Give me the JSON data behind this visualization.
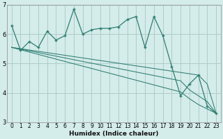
{
  "xlabel": "Humidex (Indice chaleur)",
  "ylabel": "",
  "xlim": [
    -0.5,
    23.5
  ],
  "ylim": [
    3,
    7
  ],
  "bg_color": "#d4ecea",
  "plot_bg_color": "#d4ecea",
  "grid_color": "#a8c8c4",
  "line_color": "#2e7d72",
  "main_line": [
    6.3,
    5.45,
    5.75,
    5.55,
    6.1,
    5.8,
    5.95,
    6.85,
    6.0,
    6.15,
    6.2,
    6.2,
    6.25,
    6.5,
    6.6,
    5.55,
    6.6,
    5.95,
    4.9,
    3.9,
    4.3,
    4.6,
    3.55,
    3.3
  ],
  "diag_line1": [
    5.55,
    5.505,
    5.46,
    5.415,
    5.37,
    5.325,
    5.28,
    5.235,
    5.19,
    5.145,
    5.1,
    5.055,
    5.01,
    4.965,
    4.92,
    4.875,
    4.83,
    4.785,
    4.74,
    4.695,
    4.65,
    4.605,
    4.3,
    3.3
  ],
  "diag_line2": [
    5.55,
    5.49,
    5.43,
    5.37,
    5.31,
    5.25,
    5.19,
    5.13,
    5.07,
    5.01,
    4.95,
    4.89,
    4.83,
    4.77,
    4.71,
    4.65,
    4.59,
    4.53,
    4.47,
    4.41,
    4.1,
    3.9,
    3.7,
    3.3
  ],
  "diag_line3": [
    5.55,
    5.47,
    5.39,
    5.31,
    5.23,
    5.15,
    5.07,
    4.99,
    4.91,
    4.83,
    4.75,
    4.67,
    4.59,
    4.51,
    4.43,
    4.35,
    4.27,
    4.19,
    4.11,
    4.03,
    3.8,
    3.6,
    3.45,
    3.3
  ],
  "xticks": [
    0,
    1,
    2,
    3,
    4,
    5,
    6,
    7,
    8,
    9,
    10,
    11,
    12,
    13,
    14,
    15,
    16,
    17,
    18,
    19,
    20,
    21,
    22,
    23
  ],
  "yticks": [
    3,
    4,
    5,
    6,
    7
  ],
  "xlabel_fontsize": 6.5,
  "tick_fontsize": 5.5
}
